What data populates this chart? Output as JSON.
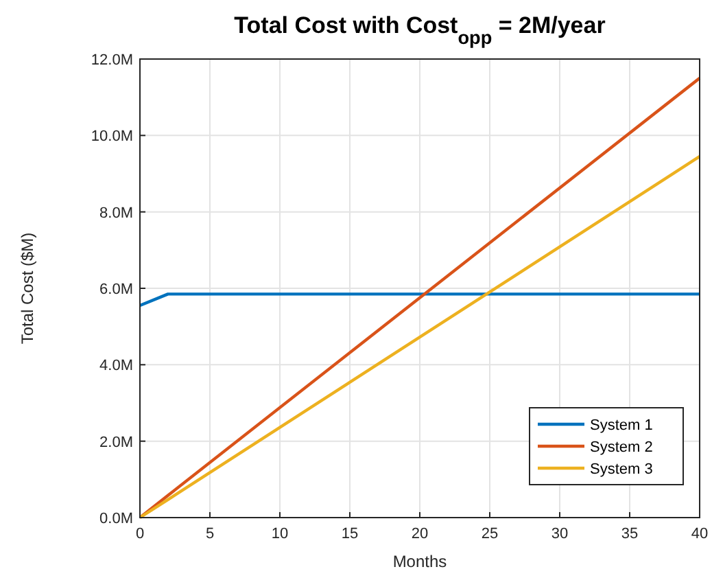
{
  "chart_data": {
    "type": "line",
    "title": "Total Cost with Cost$_{opp}$ = 2M/year",
    "xlabel": "Months",
    "ylabel": "Total Cost ($M)",
    "x": [
      0,
      2,
      40
    ],
    "series": [
      {
        "name": "System 1",
        "color": "#0072bd",
        "values": [
          5.55,
          5.85,
          5.85
        ]
      },
      {
        "name": "System 2",
        "color": "#d95319",
        "values": [
          0,
          0.58,
          11.5
        ]
      },
      {
        "name": "System 3",
        "color": "#edb120",
        "values": [
          0,
          0.47,
          9.45
        ]
      }
    ],
    "xlim": [
      0,
      40
    ],
    "xticks": [
      0,
      5,
      10,
      15,
      20,
      25,
      30,
      35,
      40
    ],
    "ylim": [
      0,
      12
    ],
    "yticks": [
      {
        "value": 0,
        "label": "0.0M"
      },
      {
        "value": 2,
        "label": "2.0M"
      },
      {
        "value": 4,
        "label": "4.0M"
      },
      {
        "value": 6,
        "label": "6.0M"
      },
      {
        "value": 8,
        "label": "8.0M"
      },
      {
        "value": 10,
        "label": "10.0M"
      },
      {
        "value": 12,
        "label": "12.0M"
      }
    ],
    "grid": true,
    "legend": "bottom right",
    "marker": "none",
    "line_style": "solid"
  }
}
